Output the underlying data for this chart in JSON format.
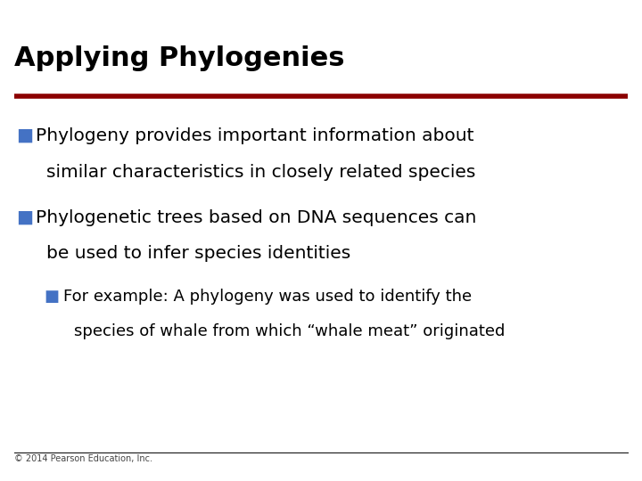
{
  "title": "Applying Phylogenies",
  "title_color": "#000000",
  "title_fontsize": 22,
  "title_bold": true,
  "divider_color": "#8B0000",
  "background_color": "#FFFFFF",
  "bullet_color": "#4472C4",
  "bullet_char": "■",
  "bullet1_line1": "Phylogeny provides important information about",
  "bullet1_line2": "similar characteristics in closely related species",
  "bullet2_line1": "Phylogenetic trees based on DNA sequences can",
  "bullet2_line2": "be used to infer species identities",
  "sub_bullet_line1": "For example: A phylogeny was used to identify the",
  "sub_bullet_line2": "species of whale from which “whale meat” originated",
  "footer_text": "© 2014 Pearson Education, Inc.",
  "footer_fontsize": 7
}
